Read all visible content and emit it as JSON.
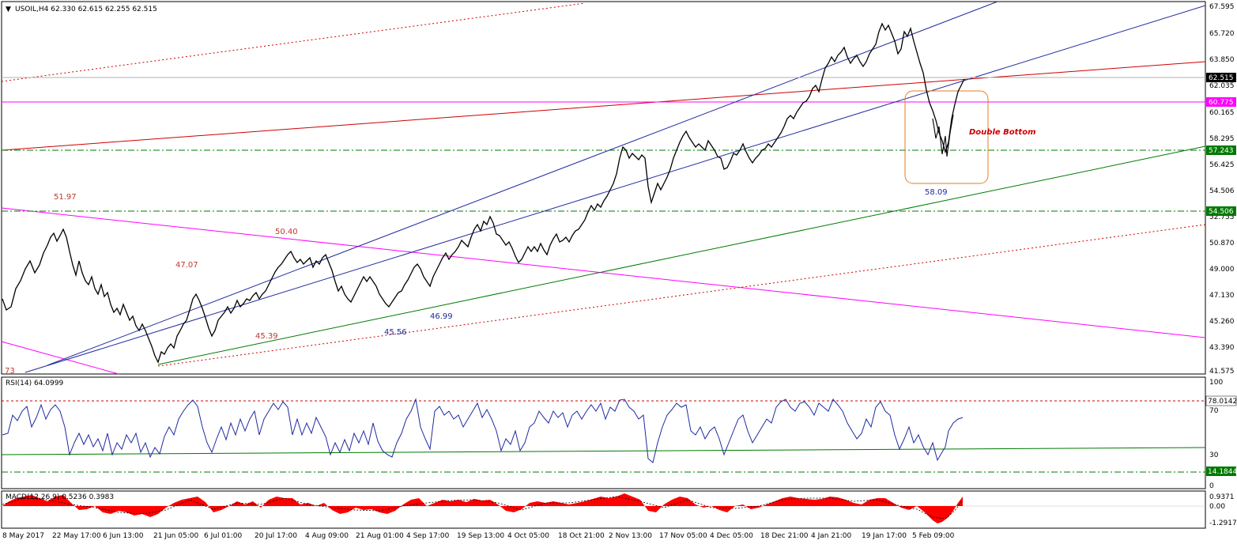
{
  "main_panel": {
    "title": "USOIL,H4  62.330 62.615 62.255 62.515",
    "current_price": "62.515",
    "price_labels": [
      "67.595",
      "65.720",
      "63.850",
      "62.035",
      "60.165",
      "58.295",
      "56.425",
      "54.506",
      "52.755",
      "50.870",
      "49.000",
      "47.130",
      "45.260",
      "43.390",
      "41.575"
    ],
    "tagged_levels": [
      {
        "text": "60.775",
        "bg": "#ff00ff",
        "fg": "#ffffff"
      },
      {
        "text": "57.243",
        "bg": "#007a00",
        "fg": "#ffffff"
      },
      {
        "text": "54.506",
        "bg": "#007a00",
        "fg": "#ffffff"
      }
    ],
    "annotations": [
      {
        "text": "51.97",
        "color": "red"
      },
      {
        "text": "47.07",
        "color": "red"
      },
      {
        "text": "50.40",
        "color": "red"
      },
      {
        "text": "45.39",
        "color": "red"
      },
      {
        "text": "45.56",
        "color": "blue"
      },
      {
        "text": "46.99",
        "color": "blue"
      },
      {
        "text": "58.09",
        "color": "blue"
      },
      {
        "text": "73",
        "color": "red"
      }
    ],
    "pattern_label": "Double Bottom"
  },
  "rsi_panel": {
    "title": "RSI(14) 64.0999",
    "labels": [
      "100",
      "78.0142",
      "70",
      "30",
      "14.1844",
      "0"
    ],
    "tagged_levels": [
      {
        "text": "78.0142",
        "bg": "#ffffff",
        "fg": "#000000"
      },
      {
        "text": "14.1844",
        "bg": "#007a00",
        "fg": "#ffffff"
      }
    ]
  },
  "macd_panel": {
    "title": "MACD(12,26,9) 0.5236 0.3983",
    "labels": [
      "0.9371",
      "0.00",
      "-1.2917"
    ]
  },
  "x_axis": {
    "labels": [
      "8 May 2017",
      "22 May 17:00",
      "6 Jun 13:00",
      "21 Jun 05:00",
      "6 Jul 01:00",
      "20 Jul 17:00",
      "4 Aug 09:00",
      "21 Aug 01:00",
      "4 Sep 17:00",
      "19 Sep 13:00",
      "4 Oct 05:00",
      "18 Oct 21:00",
      "2 Nov 13:00",
      "17 Nov 05:00",
      "4 Dec 05:00",
      "18 Dec 21:00",
      "4 Jan 21:00",
      "19 Jan 17:00",
      "5 Feb 09:00"
    ]
  },
  "colors": {
    "candles": "#000000",
    "channel": "#1f2a9e",
    "red_trend": "#cc0000",
    "magenta": "#ff00ff",
    "green": "#007a00",
    "orange_box": "#e67e22",
    "rsi_line": "#1f2a9e",
    "macd_hist": "#ff0000"
  }
}
